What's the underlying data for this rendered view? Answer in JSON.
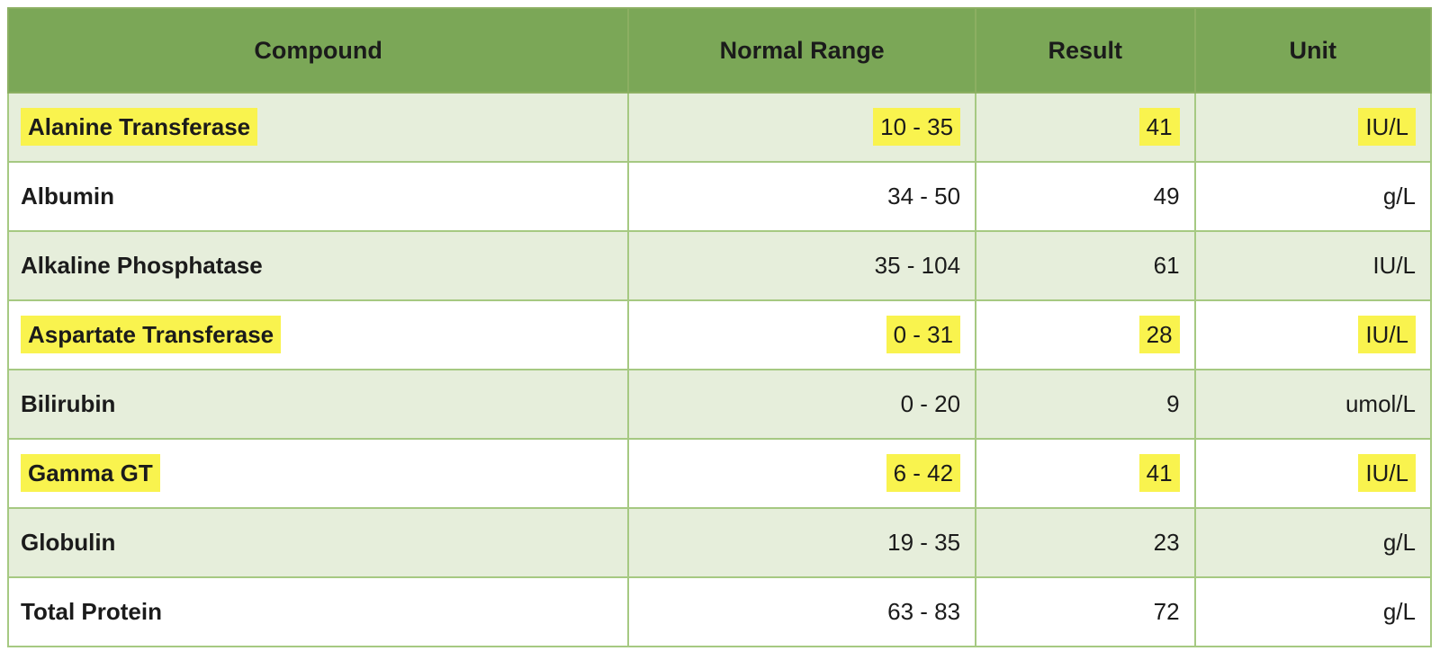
{
  "table": {
    "columns": [
      "Compound",
      "Normal Range",
      "Result",
      "Unit"
    ],
    "rows": [
      {
        "compound": "Alanine Transferase",
        "normal_range": "10 - 35",
        "result": "41",
        "unit": "IU/L",
        "highlighted": true
      },
      {
        "compound": "Albumin",
        "normal_range": "34 - 50",
        "result": "49",
        "unit": "g/L",
        "highlighted": false
      },
      {
        "compound": "Alkaline Phosphatase",
        "normal_range": "35 - 104",
        "result": "61",
        "unit": "IU/L",
        "highlighted": false
      },
      {
        "compound": "Aspartate Transferase",
        "normal_range": "0 - 31",
        "result": "28",
        "unit": "IU/L",
        "highlighted": true
      },
      {
        "compound": "Bilirubin",
        "normal_range": "0 - 20",
        "result": "9",
        "unit": "umol/L",
        "highlighted": false
      },
      {
        "compound": "Gamma GT",
        "normal_range": "6 - 42",
        "result": "41",
        "unit": "IU/L",
        "highlighted": true
      },
      {
        "compound": "Globulin",
        "normal_range": "19 - 35",
        "result": "23",
        "unit": "g/L",
        "highlighted": false
      },
      {
        "compound": "Total Protein",
        "normal_range": "63 - 83",
        "result": "72",
        "unit": "g/L",
        "highlighted": false
      }
    ]
  },
  "colors": {
    "header_bg": "#7BA757",
    "header_border": "#8CAF62",
    "row_stripe_bg": "#E6EEDB",
    "row_bg": "#FFFFFF",
    "cell_border": "#A6C982",
    "highlight": "#F9F34E",
    "text": "#1B1B1B"
  }
}
